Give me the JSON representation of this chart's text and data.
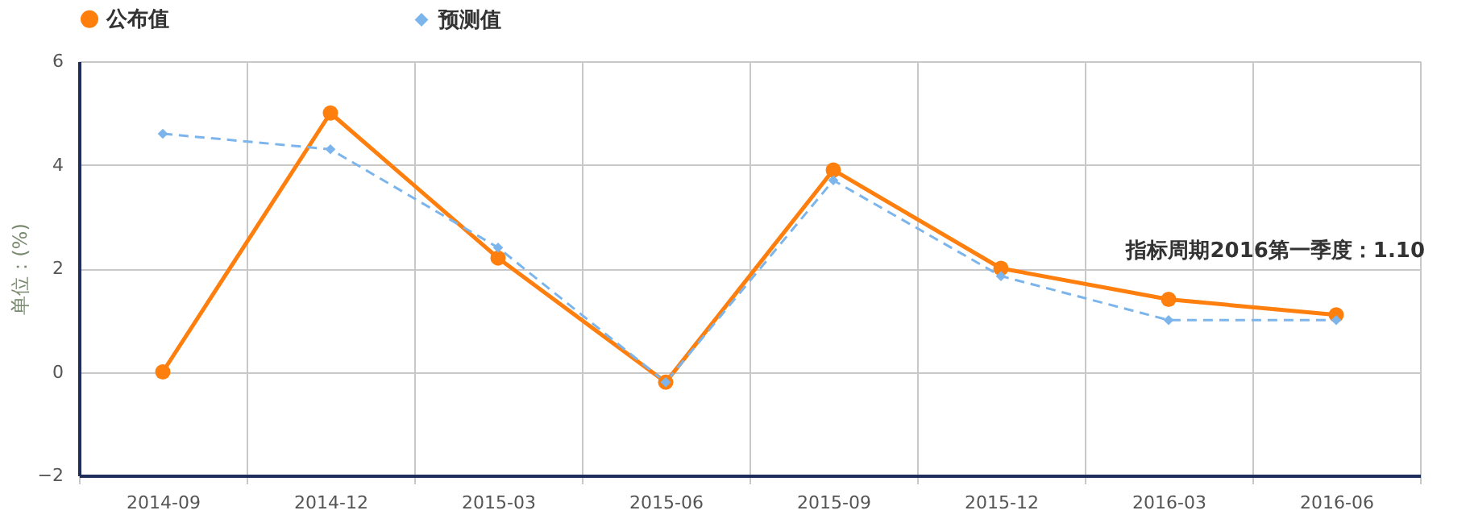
{
  "chart_data": {
    "type": "line",
    "ylabel": "单位：(%)",
    "categories": [
      "2014-09",
      "2014-12",
      "2015-03",
      "2015-06",
      "2015-09",
      "2015-12",
      "2016-03",
      "2016-06"
    ],
    "series": [
      {
        "name": "公布值",
        "color": "#ff7f0e",
        "marker": "circle",
        "line_style": "solid",
        "values": [
          0,
          5.0,
          2.2,
          -0.2,
          3.9,
          2.0,
          1.4,
          1.1
        ]
      },
      {
        "name": "预测值",
        "color": "#7cb5ec",
        "marker": "diamond",
        "line_style": "dashed",
        "values": [
          4.6,
          4.3,
          2.4,
          -0.2,
          3.7,
          1.85,
          1.0,
          1.0
        ]
      }
    ],
    "ylim": [
      -2,
      6
    ],
    "yticks": [
      -2,
      0,
      2,
      4,
      6
    ],
    "grid": true,
    "legend": "top",
    "annotations": [
      {
        "text": "指标周期2016第一季度：1.10",
        "x": "2016-06",
        "y": 1.1
      }
    ]
  }
}
